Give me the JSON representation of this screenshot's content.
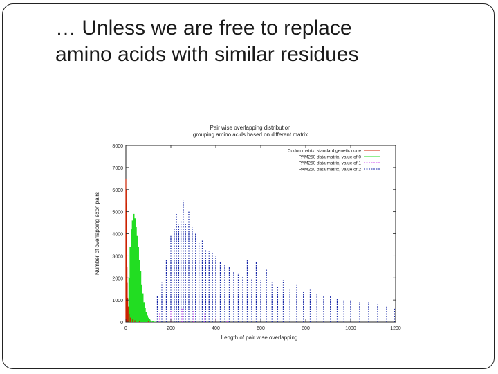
{
  "slide": {
    "title_line1": "… Unless we are free to replace",
    "title_line2": "amino acids with similar residues"
  },
  "chart_data": {
    "type": "bar",
    "title": "Pair wise overlapping distribution",
    "subtitle": "grouping amino acids based on different matrix",
    "xlabel": "Length of pair wise overlapping",
    "ylabel": "Number of overlapping exon pairs",
    "xlim": [
      0,
      1200
    ],
    "ylim": [
      0,
      8000
    ],
    "xticks": [
      "0",
      "200",
      "400",
      "600",
      "800",
      "1000",
      "1200"
    ],
    "yticks": [
      "0",
      "1000",
      "2000",
      "3000",
      "4000",
      "5000",
      "6000",
      "7000",
      "8000"
    ],
    "grid": false,
    "legend_position": "top-right",
    "series": [
      {
        "name": "Codon matrix, standard genetic code",
        "color": "#cc2200",
        "style": "solid",
        "x": [
          0,
          1,
          2,
          3,
          4,
          5,
          6,
          8,
          10,
          15,
          20,
          30,
          40,
          60,
          100,
          200,
          300,
          400
        ],
        "values": [
          6500,
          6000,
          5400,
          4400,
          3400,
          2500,
          1800,
          1100,
          700,
          350,
          200,
          120,
          80,
          50,
          30,
          15,
          8,
          4
        ]
      },
      {
        "name": "PAM250 data matrix, value of 0",
        "color": "#22dd22",
        "style": "solid",
        "x": [
          10,
          15,
          20,
          25,
          30,
          35,
          40,
          45,
          50,
          55,
          60,
          65,
          70,
          75,
          80,
          85,
          90,
          95,
          100,
          105,
          110,
          120,
          130
        ],
        "values": [
          700,
          2000,
          3400,
          4200,
          4600,
          4900,
          4700,
          4300,
          3900,
          3400,
          2800,
          2300,
          1700,
          1300,
          900,
          650,
          450,
          300,
          200,
          130,
          80,
          40,
          15
        ]
      },
      {
        "name": "PAM250 data matrix, value of 1",
        "color": "#cc44ee",
        "style": "dashed",
        "x": [
          100,
          150,
          200,
          250,
          300,
          350,
          400,
          450
        ],
        "values": [
          200,
          400,
          500,
          600,
          500,
          400,
          250,
          100
        ]
      },
      {
        "name": "PAM250 data matrix, value of 2",
        "color": "#1a2aa8",
        "style": "dashed",
        "x": [
          140,
          160,
          180,
          200,
          215,
          225,
          235,
          245,
          255,
          265,
          280,
          295,
          310,
          325,
          340,
          355,
          370,
          385,
          400,
          420,
          440,
          460,
          480,
          500,
          520,
          540,
          560,
          580,
          600,
          625,
          650,
          675,
          700,
          730,
          760,
          790,
          820,
          850,
          880,
          910,
          940,
          970,
          1000,
          1040,
          1080,
          1120,
          1160,
          1195
        ],
        "values": [
          1200,
          1800,
          2800,
          3900,
          4200,
          4900,
          4400,
          4600,
          5500,
          4500,
          5000,
          4300,
          4000,
          3600,
          3700,
          3300,
          3200,
          3100,
          3000,
          2700,
          2600,
          2500,
          2300,
          2200,
          2100,
          2800,
          2000,
          2700,
          1900,
          2400,
          1800,
          1600,
          1900,
          1500,
          1700,
          1400,
          1500,
          1300,
          1200,
          1200,
          1100,
          1000,
          1000,
          900,
          900,
          800,
          700,
          600
        ]
      }
    ]
  }
}
